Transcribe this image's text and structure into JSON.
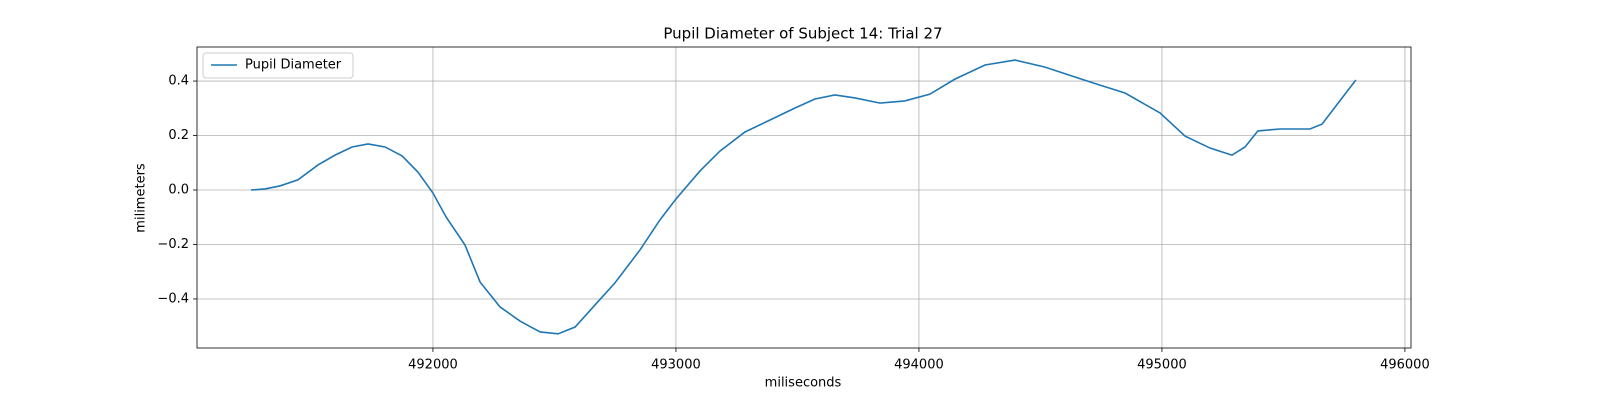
{
  "chart_data": {
    "type": "line",
    "title": "Pupil Diameter of Subject 14: Trial 27",
    "x_label": "miliseconds",
    "y_label": "milimeters",
    "x": [
      491251,
      491309,
      491370,
      491444,
      491527,
      491597,
      491667,
      491733,
      491803,
      491873,
      491938,
      492000,
      492054,
      492132,
      492194,
      492276,
      492358,
      492441,
      492515,
      492585,
      492667,
      492749,
      492852,
      492934,
      493000,
      493099,
      493181,
      493284,
      493387,
      493490,
      493572,
      493654,
      493737,
      493840,
      493942,
      494045,
      494148,
      494272,
      494395,
      494519,
      494642,
      494745,
      494848,
      494992,
      495095,
      495198,
      495288,
      495342,
      495395,
      495486,
      495609,
      495659,
      495725,
      495798
    ],
    "series": [
      {
        "name": "Pupil Diameter",
        "color": "#1f77b4",
        "values": [
          0.0,
          0.004,
          0.015,
          0.037,
          0.092,
          0.128,
          0.158,
          0.169,
          0.158,
          0.125,
          0.066,
          -0.011,
          -0.099,
          -0.202,
          -0.338,
          -0.429,
          -0.481,
          -0.521,
          -0.528,
          -0.503,
          -0.422,
          -0.341,
          -0.22,
          -0.11,
          -0.033,
          0.07,
          0.143,
          0.213,
          0.257,
          0.301,
          0.334,
          0.349,
          0.338,
          0.319,
          0.327,
          0.352,
          0.407,
          0.459,
          0.477,
          0.451,
          0.415,
          0.385,
          0.356,
          0.283,
          0.198,
          0.154,
          0.128,
          0.158,
          0.217,
          0.224,
          0.224,
          0.242,
          0.319,
          0.404
        ]
      }
    ],
    "xlim": [
      491029,
      496025
    ],
    "xticks": [
      492000,
      493000,
      494000,
      495000,
      496000
    ],
    "ylim": [
      -0.58,
      0.525
    ],
    "yticks": [
      {
        "value": -0.4,
        "label": "−0.4"
      },
      {
        "value": -0.2,
        "label": "−0.2"
      },
      {
        "value": 0,
        "label": "0.0"
      },
      0.2,
      0.4
    ],
    "grid": true,
    "legend": "upper left"
  }
}
